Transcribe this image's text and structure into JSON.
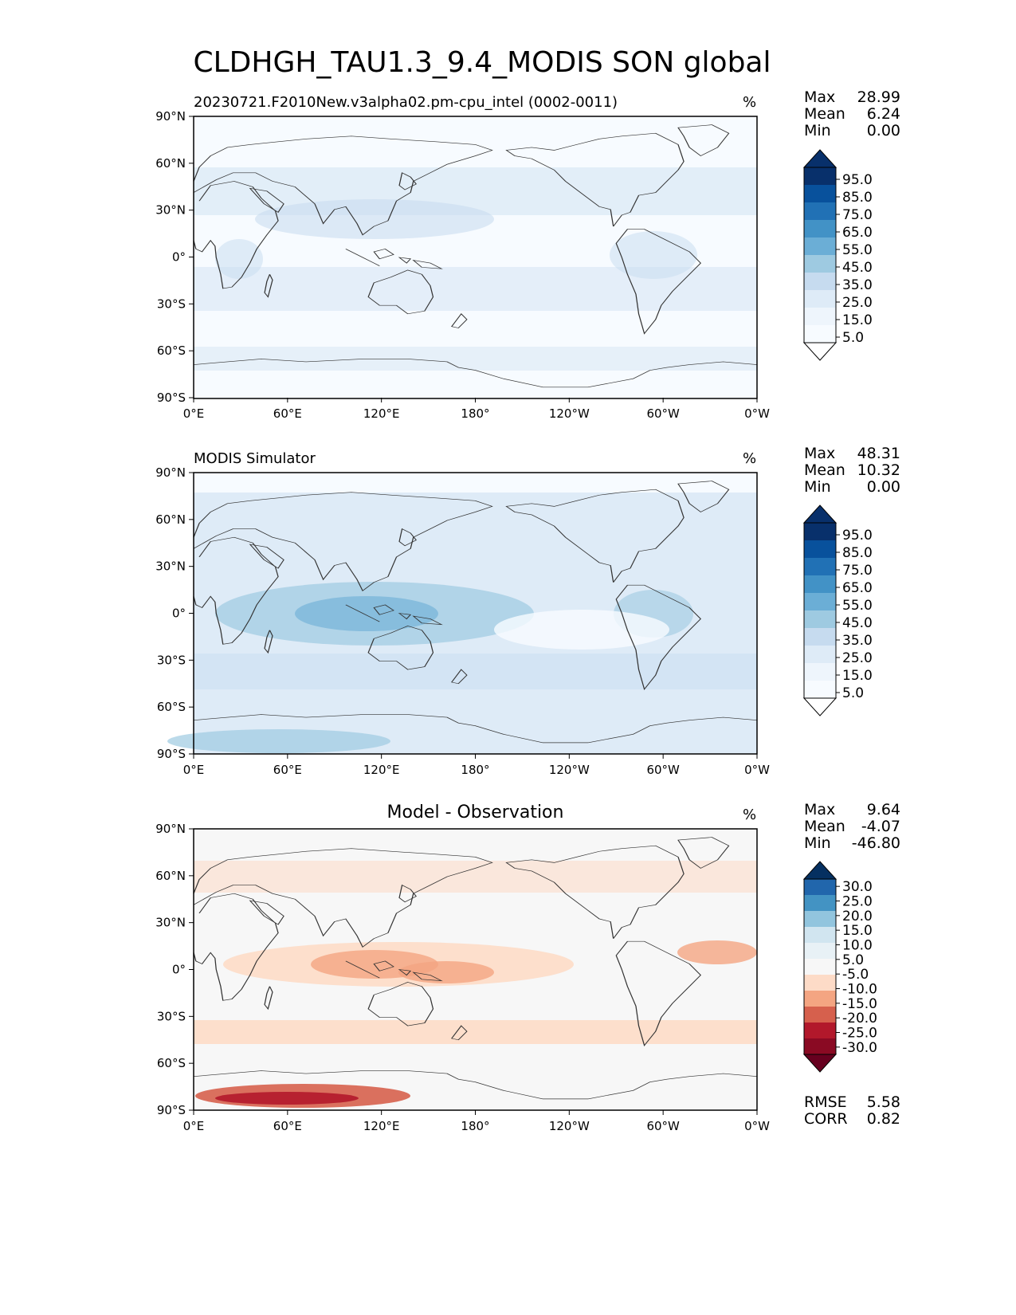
{
  "figure": {
    "title": "CLDHGH_TAU1.3_9.4_MODIS SON global"
  },
  "axes": {
    "lat_ticks": [
      "90°N",
      "60°N",
      "30°N",
      "0°",
      "30°S",
      "60°S",
      "90°S"
    ],
    "lon_ticks": [
      "0°E",
      "60°E",
      "120°E",
      "180°",
      "120°W",
      "60°W",
      "0°W"
    ]
  },
  "colors": {
    "seq": [
      "#f7fbff",
      "#deebf7",
      "#c6dbef",
      "#9ecae1",
      "#6baed6",
      "#4292c6",
      "#2171b5",
      "#08519c",
      "#08306b"
    ],
    "div_neg": [
      "#fddbc7",
      "#f4a582",
      "#d6604d",
      "#b2182b",
      "#67001f"
    ],
    "div_pos": [
      "#e0ecf4",
      "#d1e5f0",
      "#92c5de",
      "#4393c3",
      "#2166ac",
      "#053061"
    ],
    "neutral": "#f7f7f7",
    "land": "#333333"
  },
  "panels": [
    {
      "id": "test",
      "left_title": "20230721.F2010New.v3alpha02.pm-cpu_intel (0002-0011)",
      "center_title": "",
      "units": "%",
      "stats": {
        "labels": [
          "Max",
          "Mean",
          "Min"
        ],
        "values": [
          "28.99",
          "6.24",
          "0.00"
        ]
      },
      "colorbar": {
        "ticks": [
          "95.0",
          "85.0",
          "75.0",
          "65.0",
          "55.0",
          "45.0",
          "35.0",
          "25.0",
          "15.0",
          "5.0"
        ],
        "kind": "seq"
      }
    },
    {
      "id": "ref",
      "left_title": "MODIS Simulator",
      "center_title": "",
      "units": "%",
      "stats": {
        "labels": [
          "Max",
          "Mean",
          "Min"
        ],
        "values": [
          "48.31",
          "10.32",
          "0.00"
        ]
      },
      "colorbar": {
        "ticks": [
          "95.0",
          "85.0",
          "75.0",
          "65.0",
          "55.0",
          "45.0",
          "35.0",
          "25.0",
          "15.0",
          "5.0"
        ],
        "kind": "seq"
      }
    },
    {
      "id": "diff",
      "left_title": "",
      "center_title": "Model - Observation",
      "units": "%",
      "stats": {
        "labels": [
          "Max",
          "Mean",
          "Min"
        ],
        "values": [
          "9.64",
          "-4.07",
          "-46.80"
        ]
      },
      "colorbar": {
        "ticks": [
          "30.0",
          "25.0",
          "20.0",
          "15.0",
          "10.0",
          "5.0",
          "-5.0",
          "-10.0",
          "-15.0",
          "-20.0",
          "-25.0",
          "-30.0"
        ],
        "kind": "div"
      },
      "extra_stats": {
        "labels": [
          "RMSE",
          "CORR"
        ],
        "values": [
          "5.58",
          "0.82"
        ]
      }
    }
  ]
}
